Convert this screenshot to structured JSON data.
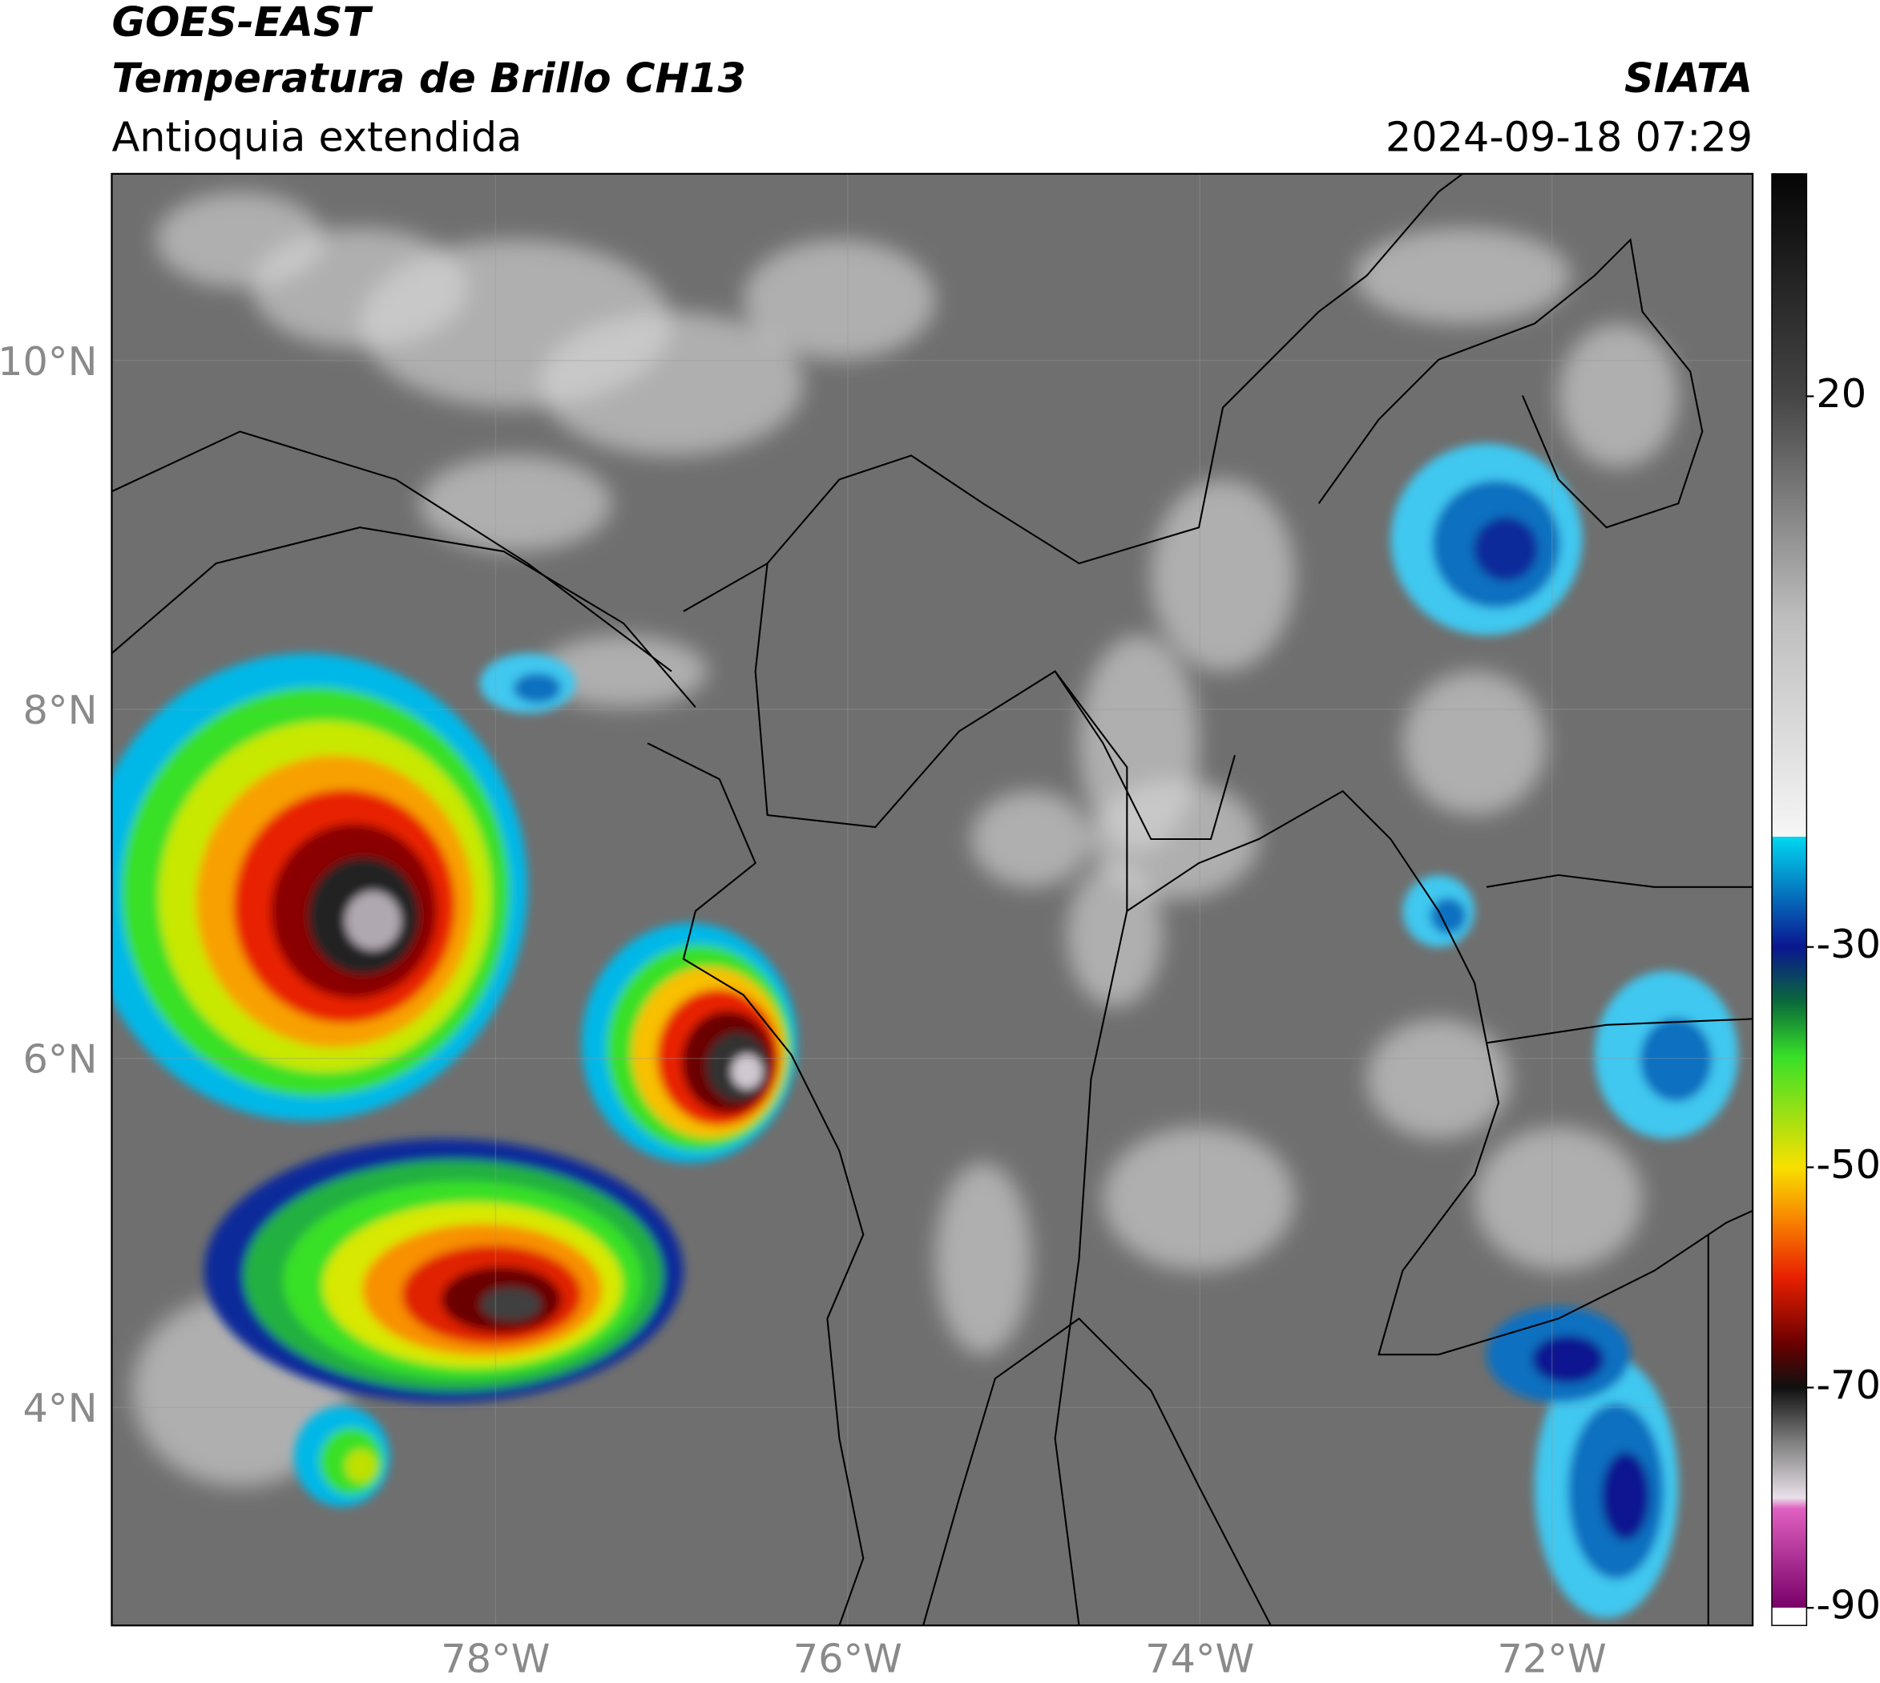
{
  "header": {
    "title": "GOES-EAST",
    "subtitle": "Temperatura de Brillo CH13",
    "region": "Antioquia extendida",
    "source": "SIATA",
    "datetime": "2024-09-18 07:29"
  },
  "map": {
    "xlim": [
      -80.18,
      -70.86
    ],
    "ylim": [
      2.75,
      11.07
    ],
    "xticks": [
      {
        "value": -78,
        "label": "78°W"
      },
      {
        "value": -76,
        "label": "76°W"
      },
      {
        "value": -74,
        "label": "74°W"
      },
      {
        "value": -72,
        "label": "72°W"
      }
    ],
    "yticks": [
      {
        "value": 4,
        "label": "4°N"
      },
      {
        "value": 6,
        "label": "6°N"
      },
      {
        "value": 8,
        "label": "8°N"
      },
      {
        "value": 10,
        "label": "10°N"
      }
    ],
    "grid": true
  },
  "colorbar": {
    "lim": [
      -91.6,
      40.2
    ],
    "ticks": [
      20,
      -30,
      -50,
      -70,
      -90
    ],
    "stops": [
      {
        "value": 40.2,
        "color": "#050505"
      },
      {
        "value": 20,
        "color": "#454545"
      },
      {
        "value": 0,
        "color": "#bdbdbd"
      },
      {
        "value": -20,
        "color": "#f6f6f6"
      },
      {
        "value": -20,
        "color": "#00d8f0"
      },
      {
        "value": -30,
        "color": "#0a1690"
      },
      {
        "value": -35,
        "color": "#0a6a3a"
      },
      {
        "value": -40,
        "color": "#38e028"
      },
      {
        "value": -50,
        "color": "#f8e000"
      },
      {
        "value": -55,
        "color": "#f88000"
      },
      {
        "value": -60,
        "color": "#e82000"
      },
      {
        "value": -66,
        "color": "#6a0000"
      },
      {
        "value": -70,
        "color": "#101010"
      },
      {
        "value": -75,
        "color": "#808080"
      },
      {
        "value": -80,
        "color": "#e8e0e8"
      },
      {
        "value": -81,
        "color": "#e060c0"
      },
      {
        "value": -90,
        "color": "#780068"
      },
      {
        "value": -90,
        "color": "#ffffff"
      },
      {
        "value": -91.6,
        "color": "#ffffff"
      }
    ]
  }
}
